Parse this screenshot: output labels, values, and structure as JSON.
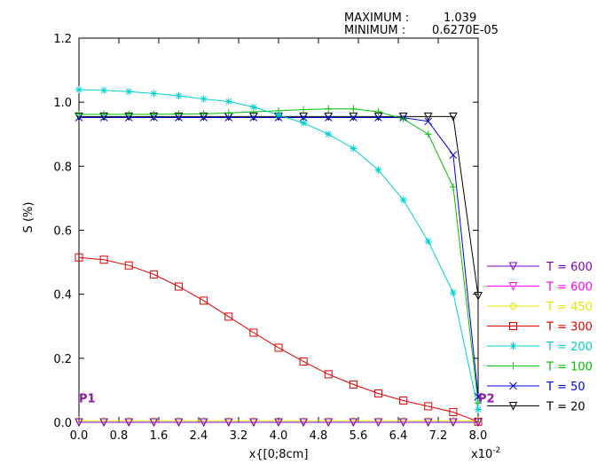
{
  "chart_data": {
    "type": "line",
    "ylabel": "S (%)",
    "xlabel": "x{[0;8cm]",
    "x_multiplier": "x10",
    "x_multiplier_exp": "-2",
    "xlim": [
      0,
      8.0
    ],
    "ylim": [
      0,
      1.2
    ],
    "x_ticks": [
      0.0,
      0.8,
      1.6,
      2.4,
      3.2,
      4.0,
      4.8,
      5.6,
      6.4,
      7.2,
      8.0
    ],
    "x_tick_labels": [
      "0.0",
      "0.8",
      "1.6",
      "2.4",
      "3.2",
      "4.0",
      "4.8",
      "5.6",
      "6.4",
      "7.2",
      "8.0"
    ],
    "y_ticks": [
      0.0,
      0.2,
      0.4,
      0.6,
      0.8,
      1.0,
      1.2
    ],
    "y_tick_labels": [
      "0.0",
      "0.2",
      "0.4",
      "0.6",
      "0.8",
      "1.0",
      "1.2"
    ],
    "grid": false,
    "legend_position": "right",
    "header": {
      "maximum_label": "MAXIMUM :",
      "maximum_value": "1.039",
      "minimum_label": "MINIMUM :",
      "minimum_value": "0.6270E-05"
    },
    "annotations": [
      {
        "text": "P1",
        "x": 0.0,
        "y": 0.035,
        "color": "#8a1aa8"
      },
      {
        "text": "P2",
        "x": 8.0,
        "y": 0.035,
        "color": "#8a1aa8"
      }
    ],
    "x": [
      0.0,
      0.5,
      1.0,
      1.5,
      2.0,
      2.5,
      3.0,
      3.5,
      4.0,
      4.5,
      5.0,
      5.5,
      6.0,
      6.5,
      7.0,
      7.5,
      8.0
    ],
    "series": [
      {
        "name": "T = 600",
        "color": "#8000c0",
        "marker": "triangle-down",
        "values": [
          0.0,
          0.0,
          0.0,
          0.0,
          0.0,
          0.0,
          0.0,
          0.0,
          0.0,
          0.0,
          0.0,
          0.0,
          0.0,
          0.0,
          0.0,
          0.0,
          0.0
        ]
      },
      {
        "name": "T = 600",
        "color": "#ff00ff",
        "marker": "triangle-down",
        "values": [
          0.0,
          0.0,
          0.0,
          0.0,
          0.0,
          0.0,
          0.0,
          0.0,
          0.0,
          0.0,
          0.0,
          0.0,
          0.0,
          0.0,
          0.0,
          0.0,
          0.0
        ]
      },
      {
        "name": "T = 450",
        "color": "#e6e600",
        "marker": "diamond",
        "values": [
          0.005,
          0.005,
          0.005,
          0.005,
          0.005,
          0.005,
          0.005,
          0.005,
          0.005,
          0.005,
          0.005,
          0.005,
          0.005,
          0.005,
          0.005,
          0.005,
          0.005
        ]
      },
      {
        "name": "T = 300",
        "color": "#e00000",
        "marker": "square",
        "values": [
          0.515,
          0.508,
          0.49,
          0.462,
          0.424,
          0.38,
          0.33,
          0.28,
          0.233,
          0.19,
          0.15,
          0.118,
          0.09,
          0.068,
          0.05,
          0.032,
          0.002
        ]
      },
      {
        "name": "T = 200",
        "color": "#00d0d0",
        "marker": "star",
        "values": [
          1.039,
          1.037,
          1.033,
          1.027,
          1.02,
          1.01,
          1.002,
          0.985,
          0.96,
          0.935,
          0.9,
          0.855,
          0.788,
          0.695,
          0.565,
          0.405,
          0.04
        ]
      },
      {
        "name": "T = 100",
        "color": "#00c000",
        "marker": "plus",
        "values": [
          0.962,
          0.962,
          0.962,
          0.962,
          0.963,
          0.964,
          0.966,
          0.97,
          0.973,
          0.977,
          0.979,
          0.979,
          0.97,
          0.948,
          0.9,
          0.735,
          0.06
        ]
      },
      {
        "name": "T = 50",
        "color": "#0000e0",
        "marker": "x",
        "values": [
          0.952,
          0.952,
          0.952,
          0.952,
          0.952,
          0.952,
          0.952,
          0.952,
          0.952,
          0.952,
          0.952,
          0.952,
          0.952,
          0.952,
          0.94,
          0.835,
          0.08
        ]
      },
      {
        "name": "T = 20",
        "color": "#000000",
        "marker": "triangle-down",
        "values": [
          0.955,
          0.955,
          0.955,
          0.955,
          0.955,
          0.955,
          0.955,
          0.955,
          0.955,
          0.955,
          0.955,
          0.955,
          0.955,
          0.955,
          0.955,
          0.955,
          0.395
        ]
      }
    ]
  }
}
